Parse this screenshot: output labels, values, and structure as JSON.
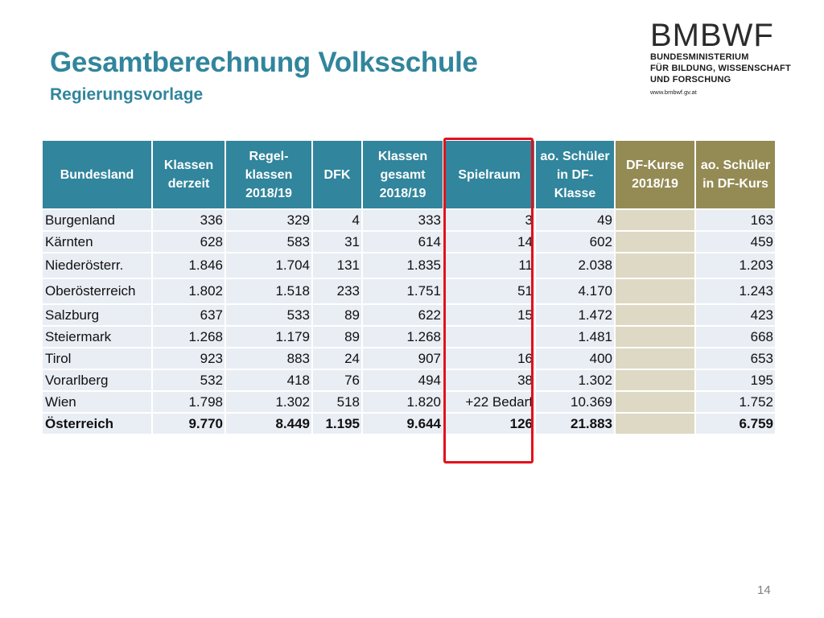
{
  "title": "Gesamtberechnung Volksschule",
  "subtitle": "Regierungsvorlage",
  "logo": {
    "name": "BMBWF",
    "lines": [
      "BUNDESMINISTERIUM",
      "FÜR BILDUNG, WISSENSCHAFT",
      "UND FORSCHUNG"
    ],
    "web": "www.bmbwf.gv.at"
  },
  "table": {
    "headers": [
      "Bundesland",
      "Klassen derzeit",
      "Regel-klassen 2018/19",
      "DFK",
      "Klassen gesamt 2018/19",
      "Spielraum",
      "ao. Schüler in DF-Klasse",
      "DF-Kurse 2018/19",
      "ao. Schüler in DF-Kurs"
    ],
    "rows": [
      [
        "Burgenland",
        "336",
        "329",
        "4",
        "333",
        "3",
        "49",
        "",
        "163"
      ],
      [
        "Kärnten",
        "628",
        "583",
        "31",
        "614",
        "14",
        "602",
        "",
        "459"
      ],
      [
        "Niederösterr.",
        "1.846",
        "1.704",
        "131",
        "1.835",
        "11",
        "2.038",
        "",
        "1.203"
      ],
      [
        "Oberösterreich",
        "1.802",
        "1.518",
        "233",
        "1.751",
        "51",
        "4.170",
        "",
        "1.243"
      ],
      [
        "Salzburg",
        "637",
        "533",
        "89",
        "622",
        "15",
        "1.472",
        "",
        "423"
      ],
      [
        "Steiermark",
        "1.268",
        "1.179",
        "89",
        "1.268",
        "",
        "1.481",
        "",
        "668"
      ],
      [
        "Tirol",
        "923",
        "883",
        "24",
        "907",
        "16",
        "400",
        "",
        "653"
      ],
      [
        "Vorarlberg",
        "532",
        "418",
        "76",
        "494",
        "38",
        "1.302",
        "",
        "195"
      ],
      [
        "Wien",
        "1.798",
        "1.302",
        "518",
        "1.820",
        "+22 Bedarf",
        "10.369",
        "",
        "1.752"
      ],
      [
        "Österreich",
        "9.770",
        "8.449",
        "1.195",
        "9.644",
        "126",
        "21.883",
        "",
        "6.759"
      ]
    ]
  },
  "colors": {
    "header_teal": "#31859c",
    "header_olive": "#948a54",
    "row_bg": "#e9edf4",
    "olive_cell": "#ddd9c4",
    "highlight_red": "#e3111b"
  },
  "page_number": "14"
}
